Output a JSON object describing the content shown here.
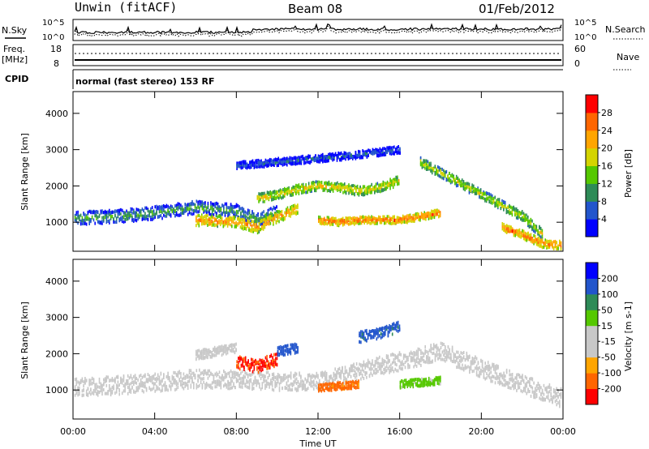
{
  "header": {
    "station": "Unwin (fitACF)",
    "beam": "Beam 08",
    "date": "01/Feb/2012",
    "mode": "normal (fast stereo) 153 RF"
  },
  "left_labels": {
    "nsky": "N.Sky",
    "freq": "Freq.",
    "mhz": "[MHz]",
    "cpid": "CPID"
  },
  "right_labels": {
    "nsearch": "N.Search",
    "nave": "Nave"
  },
  "noise_axis": {
    "top": "10^5",
    "bottom": "10^0"
  },
  "freq_axis": {
    "top": "18",
    "bottom": "8"
  },
  "nave_axis": {
    "top": "60",
    "bottom": "0"
  },
  "colors": {
    "power": [
      "#0000ff",
      "#2255cc",
      "#2e8b57",
      "#55c800",
      "#d4d400",
      "#ffa500",
      "#ff6600",
      "#ff0000"
    ],
    "velocity": [
      "#ff0000",
      "#ff6600",
      "#ffa500",
      "#c8c8c8",
      "#c8c8c8",
      "#55c800",
      "#2e8b57",
      "#2255cc",
      "#0000ff"
    ]
  },
  "chart_data": [
    {
      "type": "heatmap",
      "title": "Power",
      "xlabel": "",
      "ylabel": "Slant Range [km]",
      "x_ticks": [
        "00:00",
        "04:00",
        "08:00",
        "12:00",
        "16:00",
        "20:00",
        "00:00"
      ],
      "xlim": [
        0,
        24
      ],
      "y_ticks": [
        1000,
        2000,
        3000,
        4000
      ],
      "ylim": [
        200,
        4600
      ],
      "colorbar_label": "Power [dB]",
      "colorbar_ticks": [
        4,
        8,
        12,
        16,
        20,
        24,
        28
      ],
      "colorbar_range": [
        0,
        32
      ],
      "echo_bands": [
        {
          "t": [
            0,
            2,
            4,
            6,
            8,
            9,
            10
          ],
          "range": [
            1150,
            1200,
            1300,
            1450,
            1350,
            1100,
            1350
          ],
          "width": 350,
          "power": 12
        },
        {
          "t": [
            6,
            8,
            9,
            10,
            11
          ],
          "range": [
            1100,
            1050,
            900,
            1200,
            1400
          ],
          "width": 300,
          "power": 24
        },
        {
          "t": [
            9,
            10,
            11,
            12,
            13,
            14,
            15,
            16
          ],
          "range": [
            1700,
            1800,
            1950,
            2050,
            2000,
            1900,
            2000,
            2200
          ],
          "width": 250,
          "power": 20
        },
        {
          "t": [
            12,
            13,
            14,
            15,
            16,
            17,
            18
          ],
          "range": [
            1100,
            1050,
            1100,
            1100,
            1100,
            1200,
            1300
          ],
          "width": 200,
          "power": 26
        },
        {
          "t": [
            17,
            18,
            19,
            20,
            21,
            22,
            23
          ],
          "range": [
            2700,
            2400,
            2100,
            1800,
            1500,
            1200,
            700
          ],
          "width": 260,
          "power": 18
        },
        {
          "t": [
            21,
            22,
            23,
            24
          ],
          "range": [
            900,
            700,
            450,
            400
          ],
          "width": 220,
          "power": 26
        },
        {
          "t": [
            8,
            10,
            12,
            14,
            16
          ],
          "range": [
            2600,
            2700,
            2800,
            2900,
            3050
          ],
          "width": 200,
          "power": 8
        }
      ]
    },
    {
      "type": "heatmap",
      "title": "Velocity",
      "xlabel": "Time UT",
      "ylabel": "Slant Range [km]",
      "x_ticks": [
        "00:00",
        "04:00",
        "08:00",
        "12:00",
        "16:00",
        "20:00",
        "00:00"
      ],
      "xlim": [
        0,
        24
      ],
      "y_ticks": [
        1000,
        2000,
        3000,
        4000
      ],
      "ylim": [
        200,
        4600
      ],
      "colorbar_label": "Velocity [m s-1]",
      "colorbar_ticks": [
        -200,
        -100,
        -50,
        -15,
        15,
        50,
        100,
        200
      ],
      "colorbar_range": [
        -250,
        250
      ],
      "echo_bands": [
        {
          "t": [
            0,
            3,
            6,
            9,
            12,
            15,
            18,
            21,
            24
          ],
          "range": [
            1100,
            1200,
            1350,
            1300,
            1250,
            1700,
            2100,
            1400,
            800
          ],
          "width": 500,
          "velocity": 0
        },
        {
          "t": [
            8,
            9,
            10
          ],
          "range": [
            1800,
            1700,
            1900
          ],
          "width": 350,
          "velocity": -200
        },
        {
          "t": [
            12,
            13,
            14
          ],
          "range": [
            1100,
            1150,
            1200
          ],
          "width": 200,
          "velocity": -150
        },
        {
          "t": [
            14,
            15,
            16
          ],
          "range": [
            2500,
            2600,
            2800
          ],
          "width": 300,
          "velocity": 150
        },
        {
          "t": [
            10,
            11
          ],
          "range": [
            2100,
            2200
          ],
          "width": 250,
          "velocity": 180
        },
        {
          "t": [
            16,
            17,
            18
          ],
          "range": [
            1200,
            1250,
            1300
          ],
          "width": 200,
          "velocity": 40
        },
        {
          "t": [
            6,
            7,
            8
          ],
          "range": [
            2000,
            2100,
            2200
          ],
          "width": 250,
          "velocity": -60
        }
      ]
    }
  ]
}
